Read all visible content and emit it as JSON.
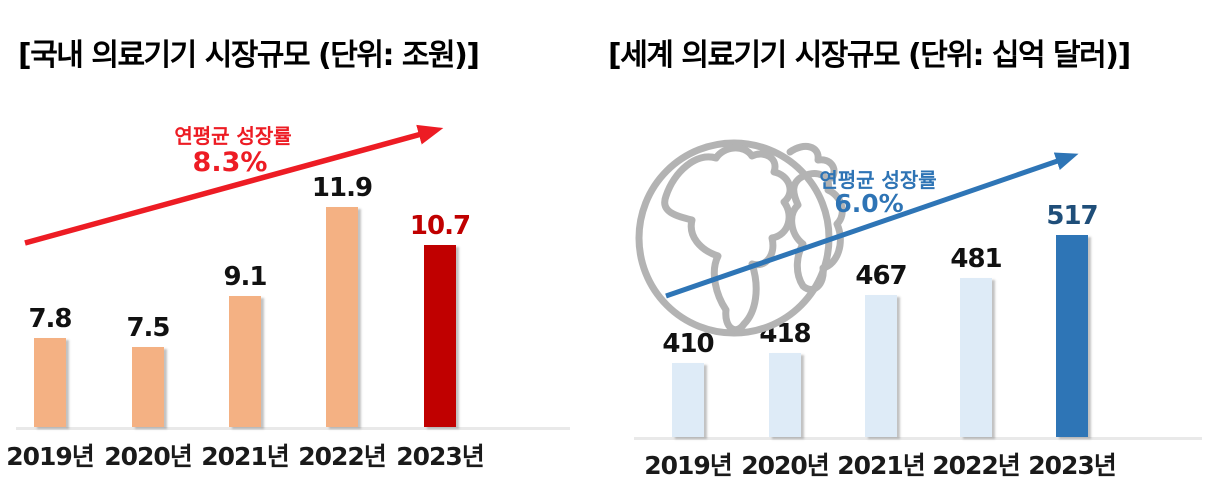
{
  "page": {
    "background": "#FFFFFF"
  },
  "chart_data": [
    {
      "type": "bar",
      "title": "[국내 의료기기 시장규모 (단위: 조원)]",
      "unit": "조원",
      "categories": [
        "2019년",
        "2020년",
        "2021년",
        "2022년",
        "2023년"
      ],
      "values": [
        7.8,
        7.5,
        9.1,
        11.9,
        10.7
      ],
      "highlight_index": 4,
      "annotation": {
        "label": "연평균 성장률",
        "value": "8.3%"
      },
      "ylim": [
        5.0,
        12.2
      ],
      "grid": false,
      "legend": "none",
      "xlabel": "",
      "ylabel": "",
      "colors": {
        "bar": "#F4B183",
        "highlight_bar": "#C00000",
        "value_label": "#111111",
        "highlight_value_label": "#C00000",
        "arrow": "#ED1C24",
        "annotation_text": "#ED1C24"
      }
    },
    {
      "type": "bar",
      "title": "[세계 의료기기 시장규모 (단위: 십억 달러)]",
      "unit": "십억 달러",
      "categories": [
        "2019년",
        "2020년",
        "2021년",
        "2022년",
        "2023년"
      ],
      "values": [
        410,
        418,
        467,
        481,
        517
      ],
      "highlight_index": 4,
      "annotation": {
        "label": "연평균 성장률",
        "value": "6.0%"
      },
      "ylim": [
        348,
        520
      ],
      "grid": false,
      "legend": "none",
      "xlabel": "",
      "ylabel": "",
      "icon": "globe-icon",
      "icon_color": "#B3B3B3",
      "colors": {
        "bar": "#DEEBF7",
        "highlight_bar": "#2E75B6",
        "value_label": "#111111",
        "highlight_value_label": "#1F4E79",
        "arrow": "#2E75B6",
        "annotation_text": "#2E74B5"
      }
    }
  ]
}
